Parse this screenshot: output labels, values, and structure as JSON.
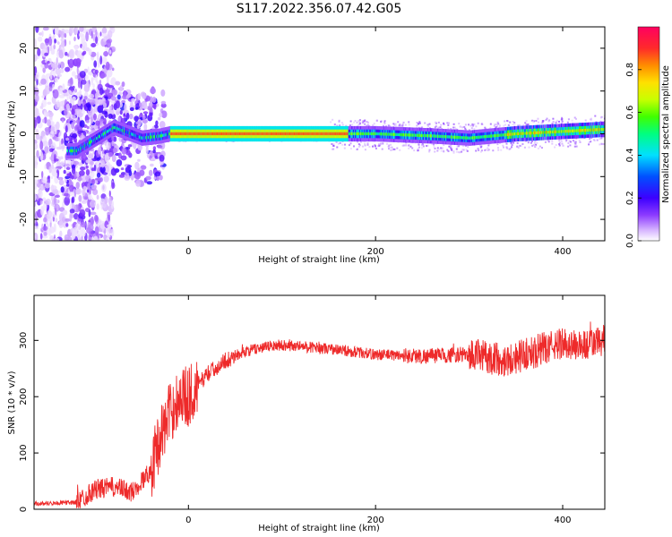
{
  "title": "S117.2022.356.07.42.G05",
  "colors": {
    "snr_line": "#ee2a2a",
    "ridge_core": "#ff2a2a"
  },
  "chart_data": [
    {
      "type": "heatmap",
      "xlabel": "Height of straight line (km)",
      "ylabel": "Frequency (Hz)",
      "xlim": [
        -165,
        445
      ],
      "ylim": [
        -25,
        25
      ],
      "x_ticks": [
        0,
        200,
        400
      ],
      "y_ticks": [
        -20,
        -10,
        0,
        10,
        20
      ],
      "colorbar": {
        "label": "Normalized spectral amplitude",
        "range": [
          0,
          1
        ],
        "ticks": [
          "0.0",
          "0.2",
          "0.4",
          "0.6",
          "0.8"
        ],
        "colormap": [
          "#ffffff",
          "#d6b4ff",
          "#8c3cff",
          "#3c00ff",
          "#0050ff",
          "#00e0ff",
          "#00ff80",
          "#40ff00",
          "#c8ff00",
          "#ffe000",
          "#ff8c00",
          "#ff2a2a",
          "#ff0060"
        ]
      },
      "ridge": {
        "description_points": [
          {
            "x": -120,
            "freq": -4.0
          },
          {
            "x": -80,
            "freq": 1.5
          },
          {
            "x": -50,
            "freq": -1.0
          },
          {
            "x": -30,
            "freq": -0.5
          },
          {
            "x": -20,
            "freq": 0.0
          },
          {
            "x": 100,
            "freq": 0.0
          },
          {
            "x": 200,
            "freq": 0.0
          },
          {
            "x": 260,
            "freq": -0.5
          },
          {
            "x": 300,
            "freq": -1.0
          },
          {
            "x": 350,
            "freq": 0.0
          },
          {
            "x": 440,
            "freq": 1.0
          }
        ]
      }
    },
    {
      "type": "line",
      "xlabel": "Height of straight line (km)",
      "ylabel": "SNR (10 * v/v)",
      "xlim": [
        -165,
        445
      ],
      "ylim": [
        0,
        380
      ],
      "x_ticks": [
        0,
        200,
        400
      ],
      "y_ticks": [
        0,
        100,
        200,
        300
      ],
      "series": [
        {
          "x": [
            -165,
            -120,
            -100,
            -80,
            -60,
            -40,
            -30,
            -20,
            -10,
            0,
            10,
            20,
            40,
            60,
            80,
            100,
            150,
            200,
            250,
            300,
            340,
            380,
            400,
            420,
            445
          ],
          "values": [
            10,
            12,
            35,
            40,
            30,
            70,
            130,
            170,
            200,
            200,
            220,
            240,
            265,
            280,
            288,
            292,
            285,
            275,
            272,
            275,
            265,
            285,
            295,
            290,
            300
          ]
        }
      ]
    }
  ]
}
